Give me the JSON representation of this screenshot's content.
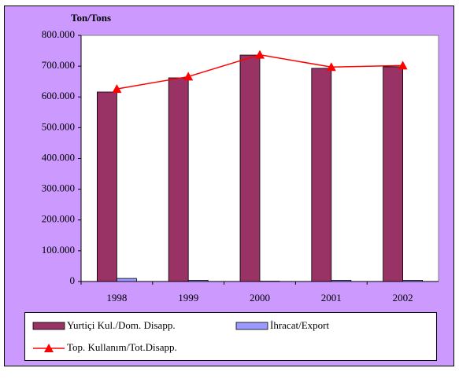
{
  "chart_data": {
    "type": "bar",
    "y_label": "Ton/Tons",
    "categories": [
      "1998",
      "1999",
      "2000",
      "2001",
      "2002"
    ],
    "series": [
      {
        "name": "Yurtiçi Kul./Dom. Disapp.",
        "color": "#993366",
        "values": [
          616000,
          662000,
          736000,
          693000,
          698000
        ]
      },
      {
        "name": "İhracat/Export",
        "color": "#9999ff",
        "values": [
          10000,
          4000,
          1000,
          4000,
          4000
        ]
      },
      {
        "name": "Top. Kullanım/Tot.Disapp.",
        "type": "line",
        "color": "#ff0000",
        "values": [
          626000,
          666000,
          737000,
          697000,
          702000
        ]
      }
    ],
    "ylim": [
      0,
      800000
    ],
    "yticks": [
      {
        "value": 0,
        "label": "0"
      },
      {
        "value": 100000,
        "label": "100.000"
      },
      {
        "value": 200000,
        "label": "200.000"
      },
      {
        "value": 300000,
        "label": "300.000"
      },
      {
        "value": 400000,
        "label": "400.000"
      },
      {
        "value": 500000,
        "label": "500.000"
      },
      {
        "value": 600000,
        "label": "600.000"
      },
      {
        "value": 700000,
        "label": "700.000"
      },
      {
        "value": 800000,
        "label": "800.000"
      }
    ],
    "grid": false
  }
}
